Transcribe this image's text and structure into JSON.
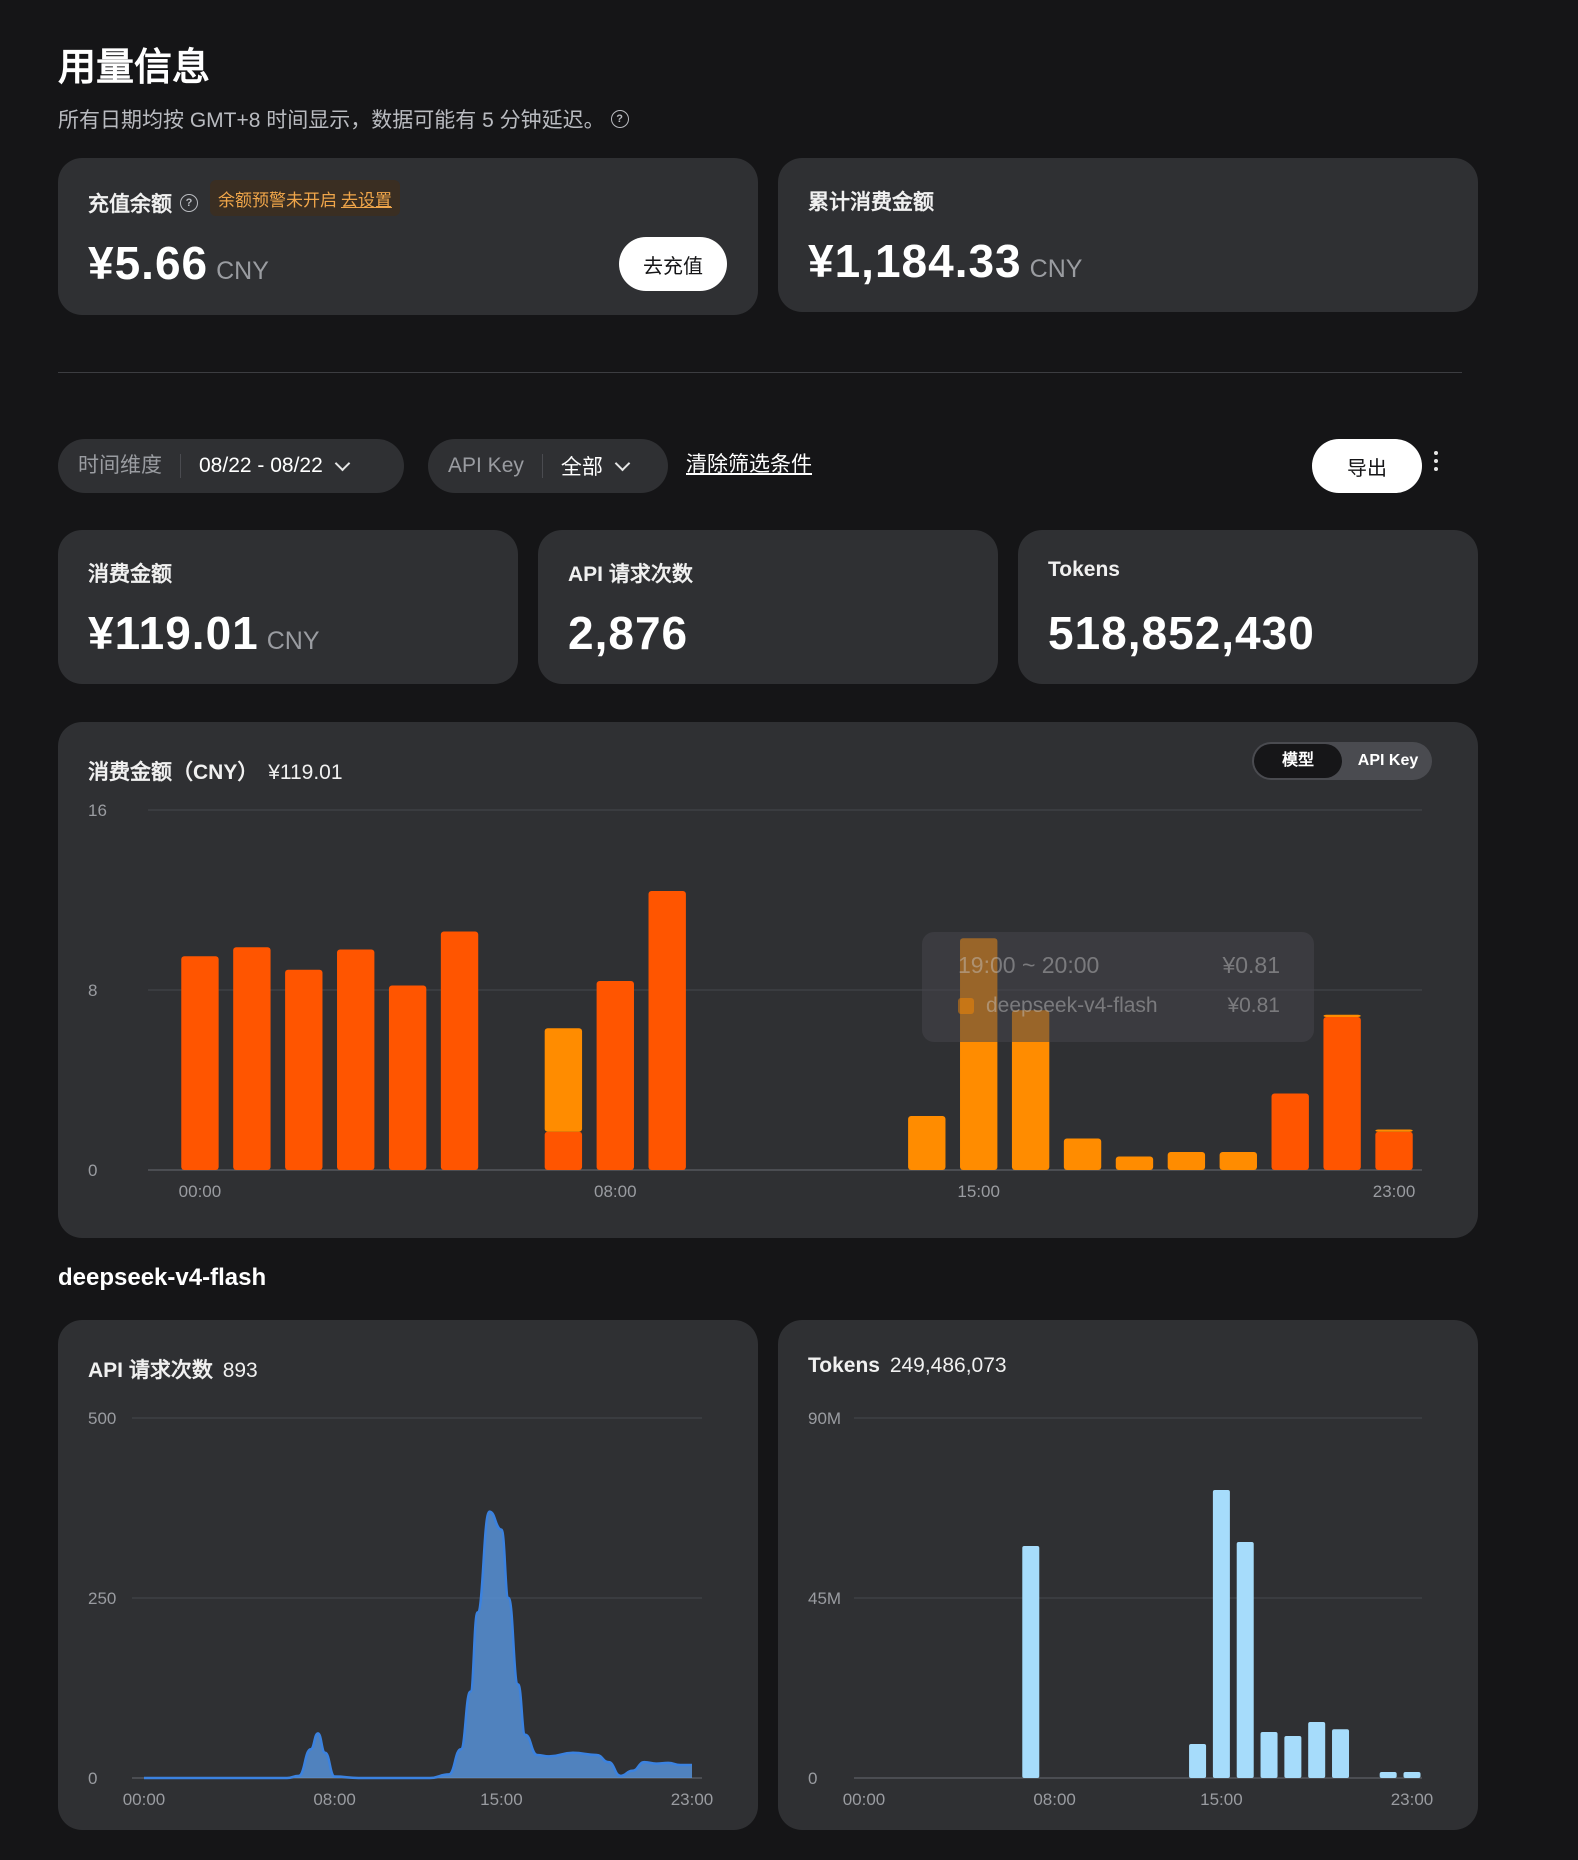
{
  "header": {
    "title": "用量信息",
    "subtitle": "所有日期均按 GMT+8 时间显示，数据可能有 5 分钟延迟。"
  },
  "balance_card": {
    "label": "充值余额",
    "warning_text": "余额预警未开启",
    "warning_link": "去设置",
    "amount": "¥5.66",
    "unit": "CNY",
    "recharge_button": "去充值"
  },
  "total_card": {
    "label": "累计消费金额",
    "amount": "¥1,184.33",
    "unit": "CNY"
  },
  "filters": {
    "time_label": "时间维度",
    "time_value": "08/22 - 08/22",
    "apikey_label": "API Key",
    "apikey_value": "全部",
    "clear_link": "清除筛选条件",
    "export_button": "导出"
  },
  "stats": {
    "spend_label": "消费金额",
    "spend_value": "¥119.01",
    "spend_unit": "CNY",
    "requests_label": "API 请求次数",
    "requests_value": "2,876",
    "tokens_label": "Tokens",
    "tokens_value": "518,852,430"
  },
  "spend_chart": {
    "title": "消费金额（CNY）",
    "total": "¥119.01",
    "toggle_model": "模型",
    "toggle_apikey": "API Key",
    "tooltip": {
      "time": "19:00 ~ 20:00",
      "total": "¥0.81",
      "model": "deepseek-v4-flash",
      "value": "¥0.81"
    }
  },
  "model_section": {
    "name": "deepseek-v4-flash",
    "requests_label": "API 请求次数",
    "requests_value": "893",
    "tokens_label": "Tokens",
    "tokens_value": "249,486,073"
  },
  "colors": {
    "bg": "#151517",
    "card": "#2f3033",
    "series_red": "#ff5500",
    "series_orange": "#ff8c00",
    "area_blue": "#5a9ae6",
    "bar_lightblue": "#a6dcfb"
  },
  "chart_data": [
    {
      "type": "bar",
      "stacked": true,
      "ylim": [
        0,
        16
      ],
      "yticks": [
        "0",
        "8",
        "16"
      ],
      "xtick_labels": [
        "00:00",
        "08:00",
        "15:00",
        "23:00"
      ],
      "xtick_hours": [
        0,
        8,
        15,
        23
      ],
      "hours": [
        0,
        1,
        2,
        3,
        4,
        5,
        6,
        7,
        8,
        9,
        10,
        11,
        12,
        13,
        14,
        15,
        16,
        17,
        18,
        19,
        20,
        21,
        22,
        23
      ],
      "series": [
        {
          "color": "#ff5500",
          "values": [
            9.5,
            9.9,
            8.9,
            9.8,
            8.2,
            10.6,
            0,
            1.7,
            8.4,
            12.4,
            0,
            0,
            0,
            0,
            0,
            0,
            0,
            0,
            0,
            0,
            0,
            3.4,
            6.8,
            1.7
          ]
        },
        {
          "color": "#ff8c00",
          "values": [
            0,
            0,
            0,
            0,
            0,
            0,
            0,
            4.6,
            0,
            0,
            0,
            0,
            0,
            0,
            2.4,
            10.3,
            7.1,
            1.4,
            0.6,
            0.8,
            0.8,
            0,
            0.1,
            0.1
          ]
        }
      ]
    },
    {
      "type": "area",
      "ylim": [
        0,
        500
      ],
      "yticks": [
        "0",
        "250",
        "500"
      ],
      "xtick_labels": [
        "00:00",
        "08:00",
        "15:00",
        "23:00"
      ],
      "xtick_hours": [
        0,
        8,
        15,
        23
      ],
      "x": [
        0,
        1,
        2,
        3,
        4,
        5,
        6,
        6.5,
        7,
        7.3,
        7.6,
        8,
        9,
        10,
        11,
        12,
        12.8,
        13.3,
        13.7,
        14,
        14.5,
        15,
        15.3,
        15.7,
        16,
        16.5,
        17,
        18,
        19,
        19.5,
        20,
        20.5,
        21,
        21.5,
        22,
        22.5,
        23
      ],
      "y": [
        0,
        0,
        0,
        0,
        0,
        0,
        0,
        3,
        40,
        62,
        35,
        2,
        0,
        0,
        0,
        0,
        5,
        40,
        120,
        230,
        370,
        345,
        250,
        130,
        60,
        32,
        30,
        35,
        32,
        22,
        3,
        10,
        22,
        20,
        21,
        18,
        18
      ]
    },
    {
      "type": "bar",
      "ylim": [
        0,
        90
      ],
      "yunit": "M",
      "yticks": [
        "0",
        "45M",
        "90M"
      ],
      "xtick_labels": [
        "00:00",
        "08:00",
        "15:00",
        "23:00"
      ],
      "xtick_hours": [
        0,
        8,
        15,
        23
      ],
      "hours": [
        0,
        1,
        2,
        3,
        4,
        5,
        6,
        7,
        8,
        9,
        10,
        11,
        12,
        13,
        14,
        15,
        16,
        17,
        18,
        19,
        20,
        21,
        22,
        23
      ],
      "values": [
        0,
        0,
        0,
        0,
        0,
        0,
        0,
        58,
        0,
        0,
        0,
        0,
        0,
        0,
        8.5,
        72,
        59,
        11.5,
        10.5,
        14,
        12.2,
        0,
        1.5,
        1.5
      ]
    }
  ]
}
